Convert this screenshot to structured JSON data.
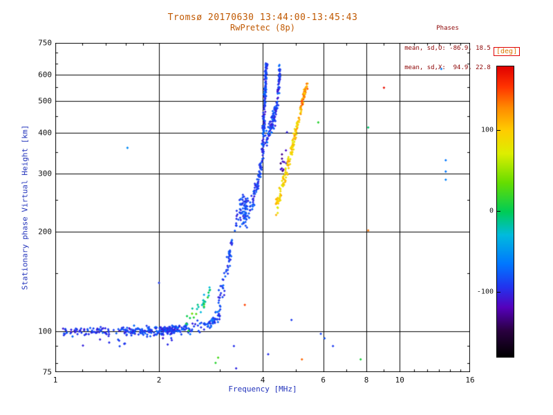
{
  "header": {
    "title": "Tromsø 20170630 13:44:00-13:45:43",
    "subtitle": "RwPretec (8p)",
    "phases": {
      "heading": "Phases",
      "line_o": "mean, sd,O: -86.9, 18.5",
      "line_x": "mean, sd,X:  94.9, 22.8"
    }
  },
  "colors": {
    "title": "#c05800",
    "phases": "#8b0000",
    "axis_label": "#2233bb",
    "tick": "#111111",
    "frame": "#000000",
    "deg_label": "#dd7700",
    "deg_box": "#e00000",
    "background": "#ffffff"
  },
  "chart_data": {
    "type": "scatter",
    "title": "Tromsø 20170630 13:44:00-13:45:43",
    "subtitle": "RwPretec (8p)",
    "xlabel": "Frequency [MHz]",
    "ylabel": "Stationary phase Virtual Height [km]",
    "xscale": "log",
    "yscale": "log",
    "xlim": [
      1,
      16
    ],
    "ylim": [
      75,
      750
    ],
    "x_ticks": [
      {
        "v": 1,
        "label": "1"
      },
      {
        "v": 2,
        "label": "2"
      },
      {
        "v": 4,
        "label": "4"
      },
      {
        "v": 6,
        "label": "6"
      },
      {
        "v": 8,
        "label": "8"
      },
      {
        "v": 10,
        "label": "10"
      },
      {
        "v": 16,
        "label": "16"
      }
    ],
    "y_ticks": [
      {
        "v": 75,
        "label": "75"
      },
      {
        "v": 100,
        "label": "100"
      },
      {
        "v": 200,
        "label": "200"
      },
      {
        "v": 300,
        "label": "300"
      },
      {
        "v": 400,
        "label": "400"
      },
      {
        "v": 500,
        "label": "500"
      },
      {
        "v": 600,
        "label": "600"
      },
      {
        "v": 750,
        "label": "750"
      }
    ],
    "x_grid": [
      2,
      4,
      6,
      8,
      10
    ],
    "y_grid": [
      100,
      200,
      300,
      400,
      500,
      600
    ],
    "x_minor": [
      1.2,
      1.4,
      1.6,
      1.8,
      3,
      5,
      7,
      9,
      11,
      12,
      13,
      14,
      15
    ],
    "y_minor": [
      80,
      90,
      150,
      250,
      350,
      450,
      550,
      650,
      700
    ],
    "grid": true,
    "stats": {
      "mean_sd_O": [
        -86.9,
        18.5
      ],
      "mean_sd_X": [
        94.9,
        22.8
      ]
    },
    "colorbar": {
      "label": "[deg]",
      "range": [
        -180,
        180
      ],
      "ticks": [
        {
          "v": 100,
          "label": "100"
        },
        {
          "v": 0,
          "label": "0"
        },
        {
          "v": -100,
          "label": "-100"
        }
      ],
      "stops": [
        [
          0.0,
          "#000000"
        ],
        [
          0.09,
          "#2a0040"
        ],
        [
          0.17,
          "#5500bb"
        ],
        [
          0.24,
          "#2233ee"
        ],
        [
          0.32,
          "#0077ff"
        ],
        [
          0.42,
          "#00bbdd"
        ],
        [
          0.5,
          "#00cc55"
        ],
        [
          0.6,
          "#66dd00"
        ],
        [
          0.7,
          "#ddee00"
        ],
        [
          0.78,
          "#ffcc00"
        ],
        [
          0.86,
          "#ff8800"
        ],
        [
          0.93,
          "#ff3300"
        ],
        [
          1.0,
          "#e00000"
        ]
      ]
    },
    "traces": [
      {
        "name": "e-region-band",
        "path": [
          [
            1.05,
            99
          ],
          [
            1.5,
            100
          ],
          [
            2.0,
            100
          ],
          [
            2.3,
            101
          ]
        ],
        "count": 260,
        "jx": 0.006,
        "jy": 4,
        "phase": [
          -110,
          -70
        ]
      },
      {
        "name": "e-region-band-ext",
        "path": [
          [
            2.3,
            101
          ],
          [
            2.6,
            103
          ],
          [
            2.85,
            107
          ],
          [
            3.0,
            112
          ]
        ],
        "count": 80,
        "jx": 0.005,
        "jy": 5,
        "phase": [
          -105,
          -65
        ]
      },
      {
        "name": "e-band-low",
        "path": [
          [
            1.2,
            92
          ],
          [
            2.2,
            93
          ]
        ],
        "count": 12,
        "jx": 0.01,
        "jy": 3,
        "phase": [
          -110,
          -80
        ]
      },
      {
        "name": "green-bump",
        "path": [
          [
            2.4,
            103
          ],
          [
            2.55,
            112
          ],
          [
            2.7,
            122
          ],
          [
            2.82,
            133
          ]
        ],
        "count": 30,
        "jx": 0.004,
        "jy": 10,
        "phase": [
          -45,
          40
        ]
      },
      {
        "name": "o-rise-1",
        "path": [
          [
            2.95,
            118
          ],
          [
            3.05,
            132
          ],
          [
            3.15,
            152
          ],
          [
            3.22,
            172
          ],
          [
            3.28,
            196
          ]
        ],
        "count": 55,
        "jx": 0.003,
        "jy": 14,
        "phase": [
          -105,
          -70
        ]
      },
      {
        "name": "o-blob",
        "path": [
          [
            3.34,
            206
          ],
          [
            3.44,
            226
          ],
          [
            3.52,
            240
          ],
          [
            3.6,
            231
          ],
          [
            3.52,
            214
          ]
        ],
        "count": 75,
        "jx": 0.006,
        "jy": 24,
        "phase": [
          -105,
          -70
        ]
      },
      {
        "name": "o-rise-2",
        "path": [
          [
            3.62,
            226
          ],
          [
            3.74,
            250
          ],
          [
            3.84,
            274
          ],
          [
            3.92,
            300
          ],
          [
            3.97,
            326
          ]
        ],
        "count": 70,
        "jx": 0.004,
        "jy": 18,
        "phase": [
          -105,
          -70
        ]
      },
      {
        "name": "o-spike-1",
        "path": [
          [
            3.99,
            332
          ],
          [
            4.03,
            420
          ],
          [
            4.06,
            510
          ],
          [
            4.08,
            580
          ],
          [
            4.1,
            642
          ]
        ],
        "count": 150,
        "jx": 0.0045,
        "jy": 28,
        "phase": [
          -110,
          -65
        ]
      },
      {
        "name": "o-mid-dense",
        "path": [
          [
            4.09,
            382
          ],
          [
            4.17,
            402
          ],
          [
            4.26,
            427
          ],
          [
            4.34,
            457
          ],
          [
            4.39,
            492
          ]
        ],
        "count": 90,
        "jx": 0.005,
        "jy": 30,
        "phase": [
          -110,
          -65
        ]
      },
      {
        "name": "o-spike-2",
        "path": [
          [
            4.41,
            502
          ],
          [
            4.45,
            552
          ],
          [
            4.47,
            596
          ],
          [
            4.49,
            628
          ]
        ],
        "count": 55,
        "jx": 0.003,
        "jy": 24,
        "phase": [
          -110,
          -70
        ]
      },
      {
        "name": "dark-between",
        "path": [
          [
            4.52,
            312
          ],
          [
            4.62,
            342
          ],
          [
            4.72,
            372
          ]
        ],
        "count": 12,
        "jx": 0.006,
        "jy": 34,
        "phase": [
          -140,
          -100
        ]
      },
      {
        "name": "x-trace-low",
        "path": [
          [
            4.36,
            234
          ],
          [
            4.49,
            259
          ],
          [
            4.61,
            286
          ],
          [
            4.73,
            316
          ]
        ],
        "count": 55,
        "jx": 0.0035,
        "jy": 16,
        "phase": [
          70,
          120
        ]
      },
      {
        "name": "x-trace-mid",
        "path": [
          [
            4.73,
            316
          ],
          [
            4.86,
            356
          ],
          [
            4.96,
            392
          ],
          [
            5.06,
            432
          ],
          [
            5.16,
            472
          ]
        ],
        "count": 75,
        "jx": 0.003,
        "jy": 18,
        "phase": [
          75,
          125
        ]
      },
      {
        "name": "x-trace-top",
        "path": [
          [
            5.16,
            472
          ],
          [
            5.26,
            512
          ],
          [
            5.33,
            546
          ],
          [
            5.39,
            566
          ]
        ],
        "count": 45,
        "jx": 0.003,
        "jy": 18,
        "phase": [
          90,
          160
        ]
      }
    ],
    "singles": [
      [
        1.62,
        360,
        -55
      ],
      [
        2.0,
        140,
        -90
      ],
      [
        2.92,
        80,
        15
      ],
      [
        2.97,
        83,
        25
      ],
      [
        3.3,
        90,
        -95
      ],
      [
        3.35,
        77,
        -100
      ],
      [
        3.55,
        120,
        150
      ],
      [
        4.15,
        85,
        -95
      ],
      [
        4.85,
        108,
        -90
      ],
      [
        5.2,
        82,
        140
      ],
      [
        5.9,
        98,
        -85
      ],
      [
        6.05,
        95,
        -80
      ],
      [
        6.4,
        90,
        -90
      ],
      [
        7.7,
        82,
        10
      ],
      [
        5.8,
        430,
        15
      ],
      [
        8.1,
        415,
        -5
      ],
      [
        8.1,
        202,
        135
      ],
      [
        9.0,
        548,
        172
      ],
      [
        13.2,
        625,
        -60
      ],
      [
        13.6,
        330,
        -65
      ],
      [
        13.6,
        305,
        -65
      ],
      [
        13.6,
        288,
        -60
      ]
    ]
  }
}
